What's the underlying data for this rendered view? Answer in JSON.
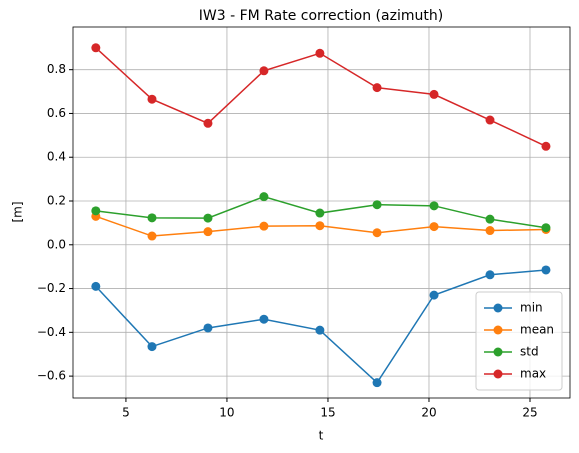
{
  "chart_data": {
    "type": "line",
    "title": "IW3 - FM Rate correction (azimuth)",
    "x_label": "t",
    "y_label": "[m]",
    "x": [
      3.51,
      6.29,
      9.06,
      11.83,
      14.6,
      17.43,
      20.25,
      23.02,
      25.79
    ],
    "series": [
      {
        "name": "min",
        "color": "#1f77b4",
        "values": [
          -0.19,
          -0.465,
          -0.38,
          -0.34,
          -0.39,
          -0.63,
          -0.23,
          -0.137,
          -0.115
        ]
      },
      {
        "name": "mean",
        "color": "#ff7f0e",
        "values": [
          0.13,
          0.04,
          0.06,
          0.085,
          0.087,
          0.055,
          0.083,
          0.065,
          0.07
        ]
      },
      {
        "name": "std",
        "color": "#2ca02c",
        "values": [
          0.155,
          0.123,
          0.122,
          0.22,
          0.145,
          0.183,
          0.178,
          0.117,
          0.078
        ]
      },
      {
        "name": "max",
        "color": "#d62728",
        "values": [
          0.9,
          0.665,
          0.555,
          0.795,
          0.875,
          0.718,
          0.687,
          0.57,
          0.45
        ]
      }
    ],
    "xlim": [
      2.38,
      26.98
    ],
    "xticks": [
      5,
      10,
      15,
      20,
      25
    ],
    "ylim": [
      -0.7,
      0.995
    ],
    "yticks": [
      {
        "value": -0.6,
        "label": "−0.6"
      },
      {
        "value": -0.4,
        "label": "−0.4"
      },
      {
        "value": -0.2,
        "label": "−0.2"
      },
      {
        "value": 0,
        "label": "0.0"
      },
      0.2,
      0.4,
      0.6,
      0.8
    ],
    "grid": true,
    "legend": "lower right"
  }
}
